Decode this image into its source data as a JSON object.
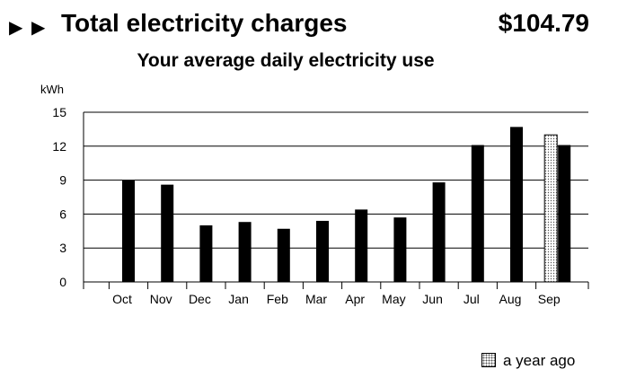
{
  "header": {
    "arrows": "▶ ▶",
    "title": "Total electricity charges",
    "amount": "$104.79"
  },
  "chart_data": {
    "type": "bar",
    "title": "Your average daily electricity use",
    "ylabel": "kWh",
    "xlabel": "",
    "ylim": [
      0,
      15
    ],
    "yticks": [
      0,
      3,
      6,
      9,
      12,
      15
    ],
    "grid": true,
    "categories": [
      "Oct",
      "Nov",
      "Dec",
      "Jan",
      "Feb",
      "Mar",
      "Apr",
      "May",
      "Jun",
      "Jul",
      "Aug",
      "Sep"
    ],
    "series": [
      {
        "name": "",
        "values": [
          9.0,
          8.6,
          5.0,
          5.3,
          4.7,
          5.4,
          6.4,
          5.7,
          8.8,
          12.1,
          13.7,
          12.1
        ],
        "color": "#000000"
      },
      {
        "name": "a  year ago",
        "values": [
          null,
          null,
          null,
          null,
          null,
          null,
          null,
          null,
          null,
          null,
          null,
          13.0
        ],
        "pattern": "dotted"
      }
    ],
    "legend_position": "bottom-right"
  }
}
